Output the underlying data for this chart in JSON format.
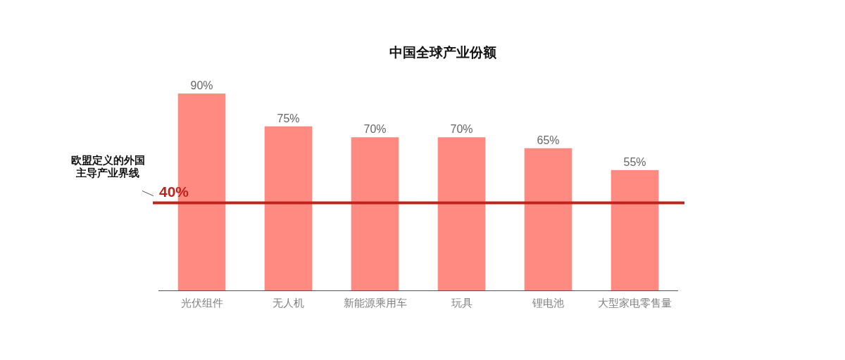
{
  "chart_data": {
    "type": "bar",
    "title": "中国全球产业份额",
    "categories": [
      "光伏组件",
      "无人机",
      "新能源乘用车",
      "玩具",
      "锂电池",
      "大型家电零售量"
    ],
    "values": [
      90,
      75,
      70,
      70,
      65,
      55
    ],
    "color": "#fe8a82",
    "value_labels": [
      "90%",
      "75%",
      "70%",
      "70%",
      "65%",
      "55%"
    ],
    "ref_lines": [
      {
        "axis": "y",
        "value": 40,
        "label": "40%",
        "color": "#c0231b"
      }
    ],
    "annotations": [
      "欧盟定义的外国主导产业界线"
    ],
    "tick_labels": "x"
  }
}
